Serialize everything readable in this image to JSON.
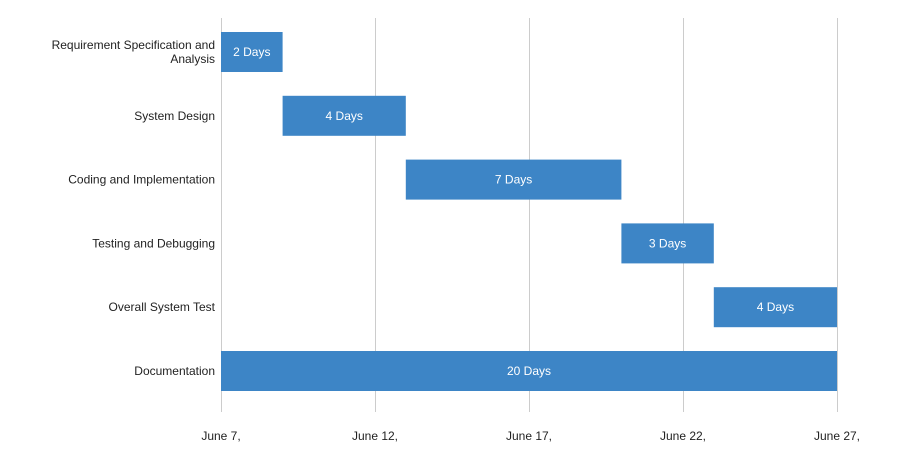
{
  "chart_data": {
    "type": "bar",
    "orientation": "horizontal",
    "x_axis": {
      "ticks": [
        "June 7,",
        "June 12,",
        "June 17,",
        "June 22,",
        "June 27,"
      ],
      "tick_values": [
        0,
        5,
        10,
        15,
        20
      ],
      "xlim": [
        0,
        20
      ],
      "grid": true
    },
    "tasks": [
      {
        "name": "Requirement Specification and Analysis",
        "name_lines": [
          "Requirement Specification and",
          "Analysis"
        ],
        "start": 0,
        "duration": 2,
        "label": "2 Days"
      },
      {
        "name": "System Design",
        "name_lines": [
          "System Design"
        ],
        "start": 2,
        "duration": 4,
        "label": "4 Days"
      },
      {
        "name": "Coding and Implementation",
        "name_lines": [
          "Coding and Implementation"
        ],
        "start": 6,
        "duration": 7,
        "label": "7 Days"
      },
      {
        "name": "Testing and Debugging",
        "name_lines": [
          "Testing and Debugging"
        ],
        "start": 13,
        "duration": 3,
        "label": "3 Days"
      },
      {
        "name": "Overall System Test",
        "name_lines": [
          "Overall System Test"
        ],
        "start": 16,
        "duration": 4,
        "label": "4 Days"
      },
      {
        "name": "Documentation",
        "name_lines": [
          "Documentation"
        ],
        "start": 0,
        "duration": 20,
        "label": "20 Days"
      }
    ],
    "colors": {
      "bar": "#3d85c6",
      "grid": "#cccccc",
      "text": "#222222",
      "bar_text": "#ffffff"
    },
    "legend": "none"
  }
}
